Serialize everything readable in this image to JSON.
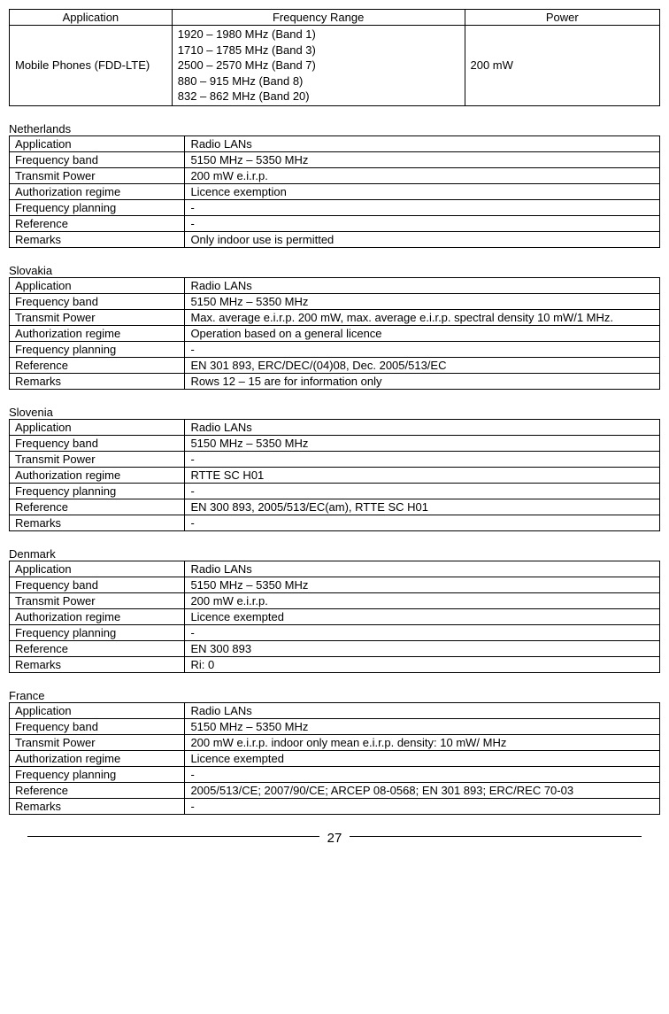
{
  "topTable": {
    "headers": [
      "Application",
      "Frequency Range",
      "Power"
    ],
    "row": {
      "application": "Mobile Phones (FDD-LTE)",
      "frequency": "1920 – 1980 MHz (Band 1)\n1710 – 1785 MHz (Band 3)\n2500 – 2570 MHz (Band 7)\n880 – 915 MHz (Band 8)\n832 – 862 MHz (Band 20)",
      "power": "200 mW"
    }
  },
  "sections": [
    {
      "country": "Netherlands",
      "rows": [
        [
          "Application",
          "Radio LANs"
        ],
        [
          "Frequency band",
          "5150 MHz – 5350 MHz"
        ],
        [
          "Transmit Power",
          "200 mW e.i.r.p."
        ],
        [
          "Authorization regime",
          "Licence exemption"
        ],
        [
          "Frequency planning",
          "-"
        ],
        [
          "Reference",
          "-"
        ],
        [
          "Remarks",
          "Only indoor use is permitted"
        ]
      ]
    },
    {
      "country": "Slovakia",
      "rows": [
        [
          "Application",
          "Radio LANs"
        ],
        [
          "Frequency band",
          "5150 MHz – 5350 MHz"
        ],
        [
          "Transmit Power",
          "Max. average e.i.r.p. 200 mW, max. average e.i.r.p. spectral density 10 mW/1 MHz."
        ],
        [
          "Authorization regime",
          "Operation based on a general licence"
        ],
        [
          "Frequency planning",
          "-"
        ],
        [
          "Reference",
          "EN 301 893, ERC/DEC/(04)08, Dec. 2005/513/EC"
        ],
        [
          "Remarks",
          "Rows 12 – 15 are for information only"
        ]
      ]
    },
    {
      "country": "Slovenia",
      "rows": [
        [
          "Application",
          "Radio LANs"
        ],
        [
          "Frequency band",
          "5150 MHz – 5350 MHz"
        ],
        [
          "Transmit Power",
          "-"
        ],
        [
          "Authorization regime",
          "RTTE SC H01"
        ],
        [
          "Frequency planning",
          "-"
        ],
        [
          "Reference",
          "EN 300 893, 2005/513/EC(am), RTTE SC H01"
        ],
        [
          "Remarks",
          "-"
        ]
      ]
    },
    {
      "country": "Denmark",
      "rows": [
        [
          "Application",
          "Radio LANs"
        ],
        [
          "Frequency band",
          "5150 MHz – 5350 MHz"
        ],
        [
          "Transmit Power",
          "200 mW e.i.r.p."
        ],
        [
          "Authorization regime",
          "Licence exempted"
        ],
        [
          "Frequency planning",
          "-"
        ],
        [
          "Reference",
          "EN 300 893"
        ],
        [
          "Remarks",
          "Ri: 0"
        ]
      ]
    },
    {
      "country": "France",
      "rows": [
        [
          "Application",
          "Radio LANs"
        ],
        [
          "Frequency band",
          "5150 MHz – 5350 MHz"
        ],
        [
          "Transmit Power",
          "200 mW e.i.r.p. indoor only mean e.i.r.p. density: 10 mW/ MHz"
        ],
        [
          "Authorization regime",
          "Licence exempted"
        ],
        [
          "Frequency planning",
          "-"
        ],
        [
          "Reference",
          "2005/513/CE; 2007/90/CE; ARCEP 08-0568; EN 301 893; ERC/REC 70-03"
        ],
        [
          "Remarks",
          "-"
        ]
      ]
    }
  ],
  "pageNumber": "27",
  "colors": {
    "text": "#000000",
    "background": "#ffffff",
    "border": "#000000"
  }
}
